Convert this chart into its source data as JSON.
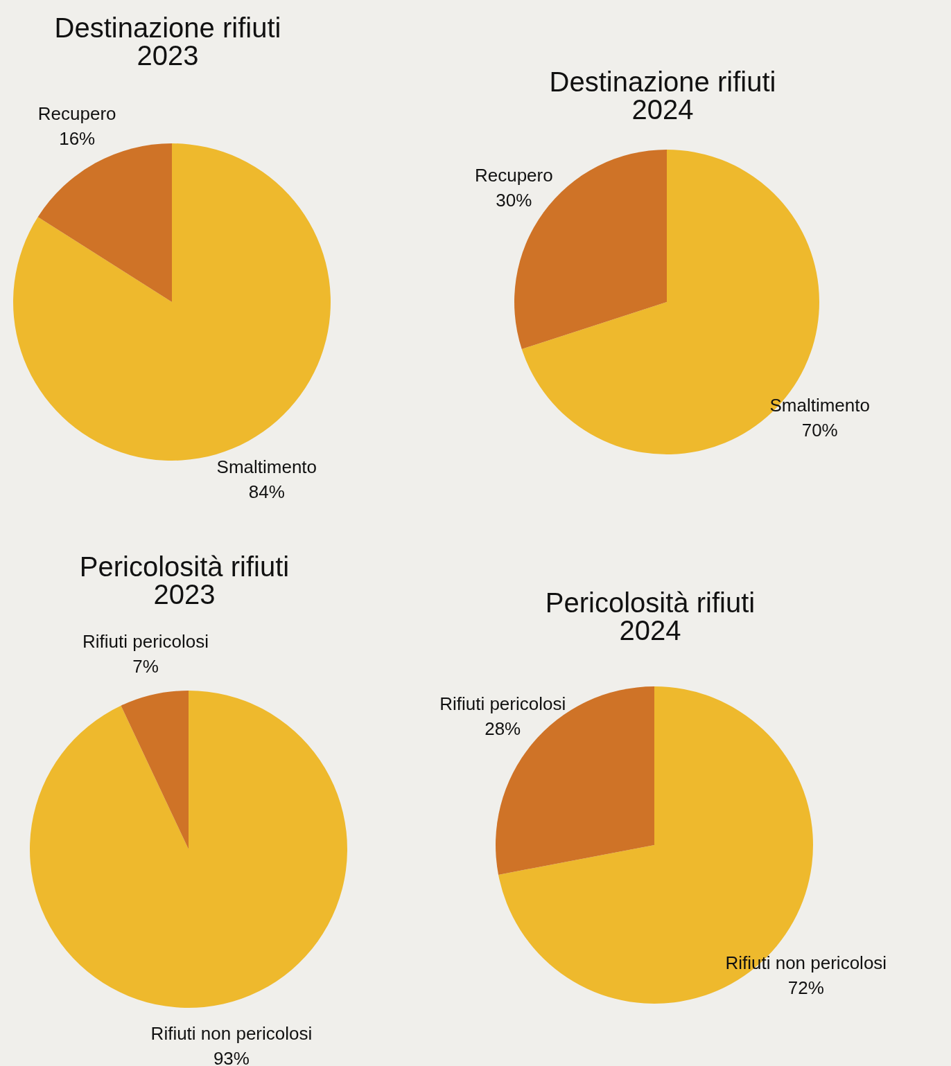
{
  "chart_data": [
    {
      "type": "pie",
      "title": "Destinazione rifiuti\n2023",
      "categories": [
        "Smaltimento",
        "Recupero"
      ],
      "values": [
        84,
        16
      ],
      "colors": [
        "#eeb92d",
        "#cf7327"
      ],
      "value_labels": [
        "84%",
        "16%"
      ]
    },
    {
      "type": "pie",
      "title": "Destinazione rifiuti\n2024",
      "categories": [
        "Smaltimento",
        "Recupero"
      ],
      "values": [
        70,
        30
      ],
      "colors": [
        "#eeb92d",
        "#cf7327"
      ],
      "value_labels": [
        "70%",
        "30%"
      ]
    },
    {
      "type": "pie",
      "title": "Pericolosità rifiuti\n2023",
      "categories": [
        "Rifiuti non pericolosi",
        "Rifiuti pericolosi"
      ],
      "values": [
        93,
        7
      ],
      "colors": [
        "#eeb92d",
        "#cf7327"
      ],
      "value_labels": [
        "93%",
        "7%"
      ]
    },
    {
      "type": "pie",
      "title": "Pericolosità rifiuti\n2024",
      "categories": [
        "Rifiuti non pericolosi",
        "Rifiuti pericolosi"
      ],
      "values": [
        72,
        28
      ],
      "colors": [
        "#eeb92d",
        "#cf7327"
      ],
      "value_labels": [
        "72%",
        "28%"
      ]
    }
  ]
}
